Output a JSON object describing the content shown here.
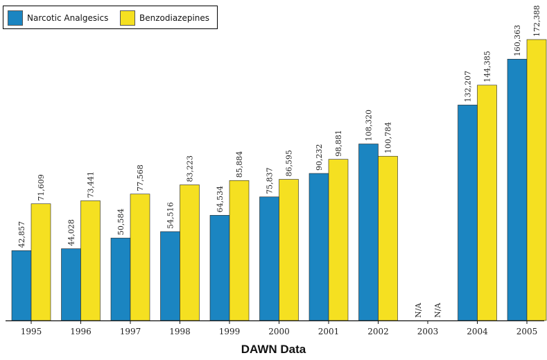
{
  "chart_data": {
    "type": "bar",
    "title": "DAWN Data",
    "categories": [
      "1995",
      "1996",
      "1997",
      "1998",
      "1999",
      "2000",
      "2001",
      "2002",
      "2003",
      "2004",
      "2005"
    ],
    "series": [
      {
        "name": "Narcotic Analgesics",
        "color": "#1b85c1",
        "values": [
          42857,
          44028,
          50584,
          54516,
          64534,
          75837,
          90232,
          108320,
          null,
          132207,
          160363
        ],
        "labels": [
          "42,857",
          "44,028",
          "50,584",
          "54,516",
          "64,534",
          "75,837",
          "90,232",
          "108,320",
          "N/A",
          "132,207",
          "160,363"
        ]
      },
      {
        "name": "Benzodiazepines",
        "color": "#f5e021",
        "values": [
          71609,
          73441,
          77568,
          83223,
          85884,
          86595,
          98881,
          100784,
          null,
          144385,
          172388
        ],
        "labels": [
          "71,609",
          "73,441",
          "77,568",
          "83,223",
          "85,884",
          "86,595",
          "98,881",
          "100,784",
          "N/A",
          "144,385",
          "172,388"
        ]
      }
    ],
    "ylim": [
      0,
      172388
    ],
    "legend": "top-left",
    "grid": false
  }
}
